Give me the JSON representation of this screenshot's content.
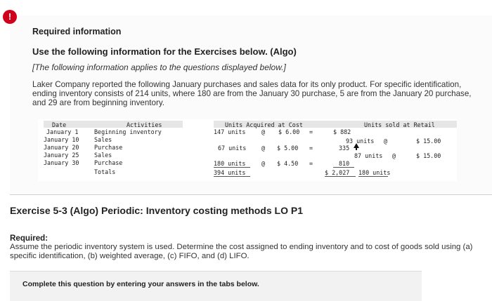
{
  "alert_icon": "!",
  "required_info": "Required information",
  "use_following": "Use the following information for the Exercises below. (Algo)",
  "info_applies": "[The following information applies to the questions displayed below.]",
  "intro": "Laker Company reported the following January purchases and sales data for its only product. For specific identification, ending inventory consists of 214 units, where 180 are from the January 30 purchase, 5 are from the January 20 purchase, and 29 are from beginning inventory.",
  "table": {
    "headers": {
      "date": "Date",
      "activities": "Activities",
      "acquired": "Units Acquired at Cost",
      "sold": "Units sold at Retail"
    },
    "rows": [
      {
        "date": "January 1",
        "activity": "Beginning inventory",
        "acq_units": "147 units",
        "acq_at": "@",
        "acq_cost": "$ 6.00",
        "acq_eq": "=",
        "acq_total": "$ 882",
        "sold_units": "",
        "sold_at": "",
        "sold_price": ""
      },
      {
        "date": "January 10",
        "activity": "Sales",
        "acq_units": "",
        "acq_at": "",
        "acq_cost": "",
        "acq_eq": "",
        "acq_total": "",
        "sold_units": "93 units",
        "sold_at": "@",
        "sold_price": "$ 15.00"
      },
      {
        "date": "January 20",
        "activity": "Purchase",
        "acq_units": "67 units",
        "acq_at": "@",
        "acq_cost": "$ 5.00",
        "acq_eq": "=",
        "acq_total": "335",
        "sold_units": "",
        "sold_at": "",
        "sold_price": ""
      },
      {
        "date": "January 25",
        "activity": "Sales",
        "acq_units": "",
        "acq_at": "",
        "acq_cost": "",
        "acq_eq": "",
        "acq_total": "",
        "sold_units": "87 units",
        "sold_at": "@",
        "sold_price": "$ 15.00"
      },
      {
        "date": "January 30",
        "activity": "Purchase",
        "acq_units": "180 units",
        "acq_at": "@",
        "acq_cost": "$ 4.50",
        "acq_eq": "=",
        "acq_total": "810",
        "sold_units": "",
        "sold_at": "",
        "sold_price": ""
      }
    ],
    "totals": {
      "label": "Totals",
      "acq_units": "394 units",
      "acq_total": "$ 2,027",
      "sold_units": "180 units"
    }
  },
  "exercise_title": "Exercise 5-3 (Algo) Periodic: Inventory costing methods LO P1",
  "required_label": "Required:",
  "required_text": "Assume the periodic inventory system is used. Determine the cost assigned to ending inventory and to cost of goods sold using (a) specific identification, (b) weighted average, (c) FIFO, and (d) LIFO.",
  "complete_text": "Complete this question by entering your answers in the tabs below."
}
